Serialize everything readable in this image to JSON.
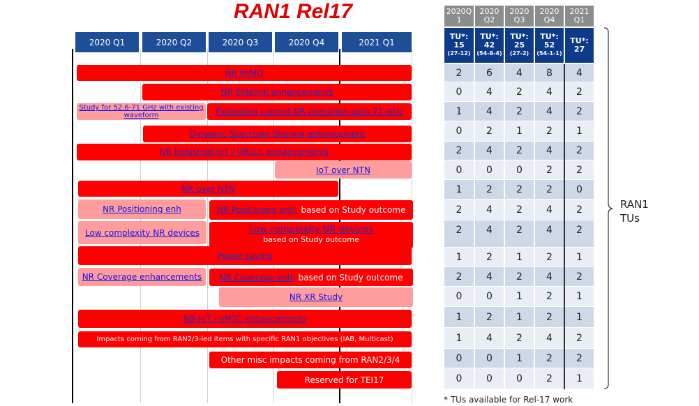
{
  "title": "RAN1 Rel17",
  "quarters": [
    "2020 Q1",
    "2020 Q2",
    "2020 Q3",
    "2020 Q4",
    "2021 Q1"
  ],
  "items": [
    {
      "link": "NR MIMO"
    },
    {
      "link": "NR Sidelink enhancements"
    },
    {
      "link": "Study for 52.6-71 GHz with existing waveform"
    },
    {
      "link": "Extending current NR operation upto 71 GHz"
    },
    {
      "link": "Dynamic Spectrum Sharing enhancement"
    },
    {
      "link": "NR Industrial IoT / URLLC enhancements"
    },
    {
      "link": "IoT over NTN"
    },
    {
      "link": "NR over NTN"
    },
    {
      "link": "NR Positioning enh"
    },
    {
      "link": "NR Positioning enh:",
      "text": "based on Study outcome"
    },
    {
      "link": "Low complexity NR devices"
    },
    {
      "link": "Low complexity NR devices",
      "text": "based on Study outcome"
    },
    {
      "link": "Power saving"
    },
    {
      "link": "NR Coverage enhancements"
    },
    {
      "link": "NR Coverage enh:",
      "text": "based on Study outcome"
    },
    {
      "link": "NR XR Study"
    },
    {
      "link": "NB-IoT / eMTC enhancements"
    },
    {
      "text": "Impacts coming from RAN2/3-led items with specific RAN1 objectives (IAB,  Multicast)"
    },
    {
      "text": "Other misc impacts coming from RAN2/3/4"
    },
    {
      "text": "Reserved for TEI17"
    }
  ],
  "table": {
    "header": [
      "2020Q 1",
      "2020 Q2",
      "2020 Q3",
      "2020 Q4",
      "2021 Q1"
    ],
    "tu": [
      {
        "label": "TU*:",
        "total": "15",
        "breakdown": "(27-12)"
      },
      {
        "label": "TU*:",
        "total": "42",
        "breakdown": "(54-8-4)"
      },
      {
        "label": "TU*:",
        "total": "25",
        "breakdown": "(27-2)"
      },
      {
        "label": "TU*:",
        "total": "52",
        "breakdown": "(54-1-1)"
      },
      {
        "label": "TU*:",
        "total": "27"
      }
    ],
    "rows": [
      [
        2,
        6,
        4,
        8,
        4
      ],
      [
        0,
        4,
        2,
        4,
        2
      ],
      [
        1,
        4,
        2,
        4,
        2
      ],
      [
        0,
        2,
        1,
        2,
        1
      ],
      [
        2,
        4,
        2,
        4,
        2
      ],
      [
        0,
        0,
        0,
        2,
        2
      ],
      [
        1,
        2,
        2,
        2,
        0
      ],
      [
        2,
        4,
        2,
        4,
        2
      ],
      [
        2,
        4,
        2,
        4,
        2
      ],
      [
        1,
        2,
        1,
        2,
        1
      ],
      [
        2,
        4,
        2,
        4,
        2
      ],
      [
        0,
        0,
        1,
        2,
        1
      ],
      [
        1,
        2,
        1,
        2,
        1
      ],
      [
        1,
        4,
        2,
        4,
        2
      ],
      [
        0,
        0,
        1,
        2,
        2
      ],
      [
        0,
        0,
        0,
        2,
        1
      ]
    ]
  },
  "brace_label": "RAN1 TUs",
  "footnote": "* TUs available for Rel-17 work"
}
